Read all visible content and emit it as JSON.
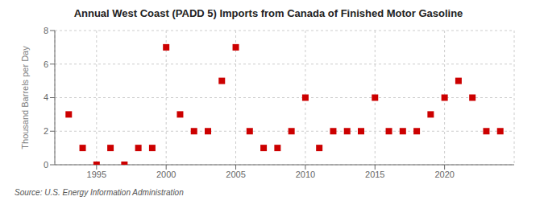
{
  "chart_data": {
    "type": "scatter",
    "title": "Annual West Coast (PADD 5) Imports from Canada of Finished Motor Gasoline",
    "y_label": "Thousand Barrels per Day",
    "annotation": "Source: U.S. Energy Information Administration",
    "x": [
      1993,
      1994,
      1995,
      1996,
      1997,
      1998,
      1999,
      2000,
      2001,
      2002,
      2003,
      2004,
      2005,
      2006,
      2007,
      2008,
      2009,
      2010,
      2011,
      2012,
      2013,
      2014,
      2015,
      2016,
      2017,
      2018,
      2019,
      2020,
      2021,
      2022,
      2023,
      2024
    ],
    "values": [
      3,
      1,
      0,
      1,
      0,
      1,
      1,
      7,
      3,
      2,
      2,
      5,
      7,
      2,
      1,
      1,
      2,
      4,
      1,
      2,
      2,
      2,
      4,
      2,
      2,
      2,
      3,
      4,
      5,
      4,
      2,
      2
    ],
    "color": "#cc0000",
    "marker": "square",
    "xlim": [
      1992,
      2025
    ],
    "ylim": [
      0,
      8
    ],
    "xticks": [
      1995,
      2000,
      2005,
      2010,
      2015,
      2020
    ],
    "yticks": [
      0,
      2,
      4,
      6,
      8
    ],
    "grid": true
  }
}
